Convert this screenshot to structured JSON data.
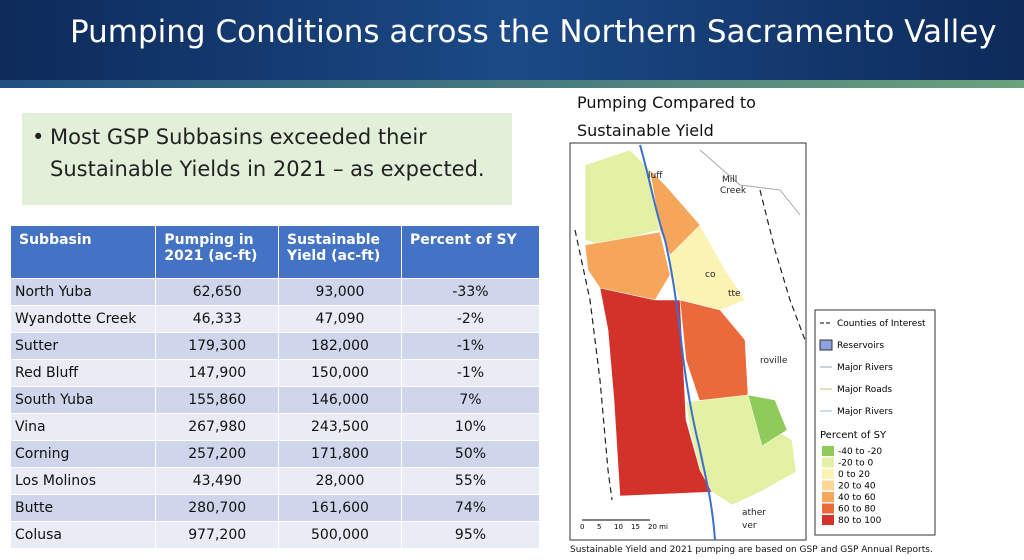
{
  "header": {
    "title": "Pumping Conditions across the Northern Sacramento Valley"
  },
  "bullet": "Most GSP Subbasins exceeded their Sustainable Yields in 2021 – as expected.",
  "table": {
    "columns": [
      [
        "Subbasin"
      ],
      [
        "Pumping in",
        "2021 (ac-ft)"
      ],
      [
        "Sustainable",
        "Yield (ac-ft)"
      ],
      [
        "Percent of SY"
      ]
    ],
    "rows": [
      [
        "North Yuba",
        "62,650",
        "93,000",
        "-33%"
      ],
      [
        "Wyandotte Creek",
        "46,333",
        "47,090",
        "-2%"
      ],
      [
        "Sutter",
        "179,300",
        "182,000",
        "-1%"
      ],
      [
        "Red Bluff",
        "147,900",
        "150,000",
        "-1%"
      ],
      [
        "South Yuba",
        "155,860",
        "146,000",
        "7%"
      ],
      [
        "Vina",
        "267,980",
        "243,500",
        "10%"
      ],
      [
        "Corning",
        "257,200",
        "171,800",
        "50%"
      ],
      [
        "Los Molinos",
        "43,490",
        "28,000",
        "55%"
      ],
      [
        "Butte",
        "280,700",
        "161,600",
        "74%"
      ],
      [
        "Colusa",
        "977,200",
        "500,000",
        "95%"
      ]
    ]
  },
  "map": {
    "title": [
      "Pumping Compared to",
      "Sustainable Yield"
    ],
    "labels": [
      "luff",
      "Mill",
      "Creek",
      "co",
      "tte",
      "roville",
      "ather",
      "ver"
    ],
    "scale": [
      "0",
      "5",
      "10",
      "15",
      "20 mi"
    ],
    "legend": {
      "lines": [
        "Counties of Interest",
        "Reservoirs",
        "Major Rivers",
        "Major Roads",
        "Major Rivers"
      ],
      "heading": "Percent of SY",
      "items": [
        {
          "label": "-40 to -20",
          "color": "#8fcb5a"
        },
        {
          "label": "-20 to 0",
          "color": "#e4f0a4"
        },
        {
          "label": "0 to 20",
          "color": "#fbf3b4"
        },
        {
          "label": "20 to 40",
          "color": "#fcd894"
        },
        {
          "label": "40 to 60",
          "color": "#f6a65a"
        },
        {
          "label": "60 to 80",
          "color": "#ea6a3b"
        },
        {
          "label": "80 to 100",
          "color": "#d3322a"
        }
      ]
    }
  },
  "footnote": "Sustainable Yield and 2021 pumping are based on GSP and GSP Annual Reports."
}
